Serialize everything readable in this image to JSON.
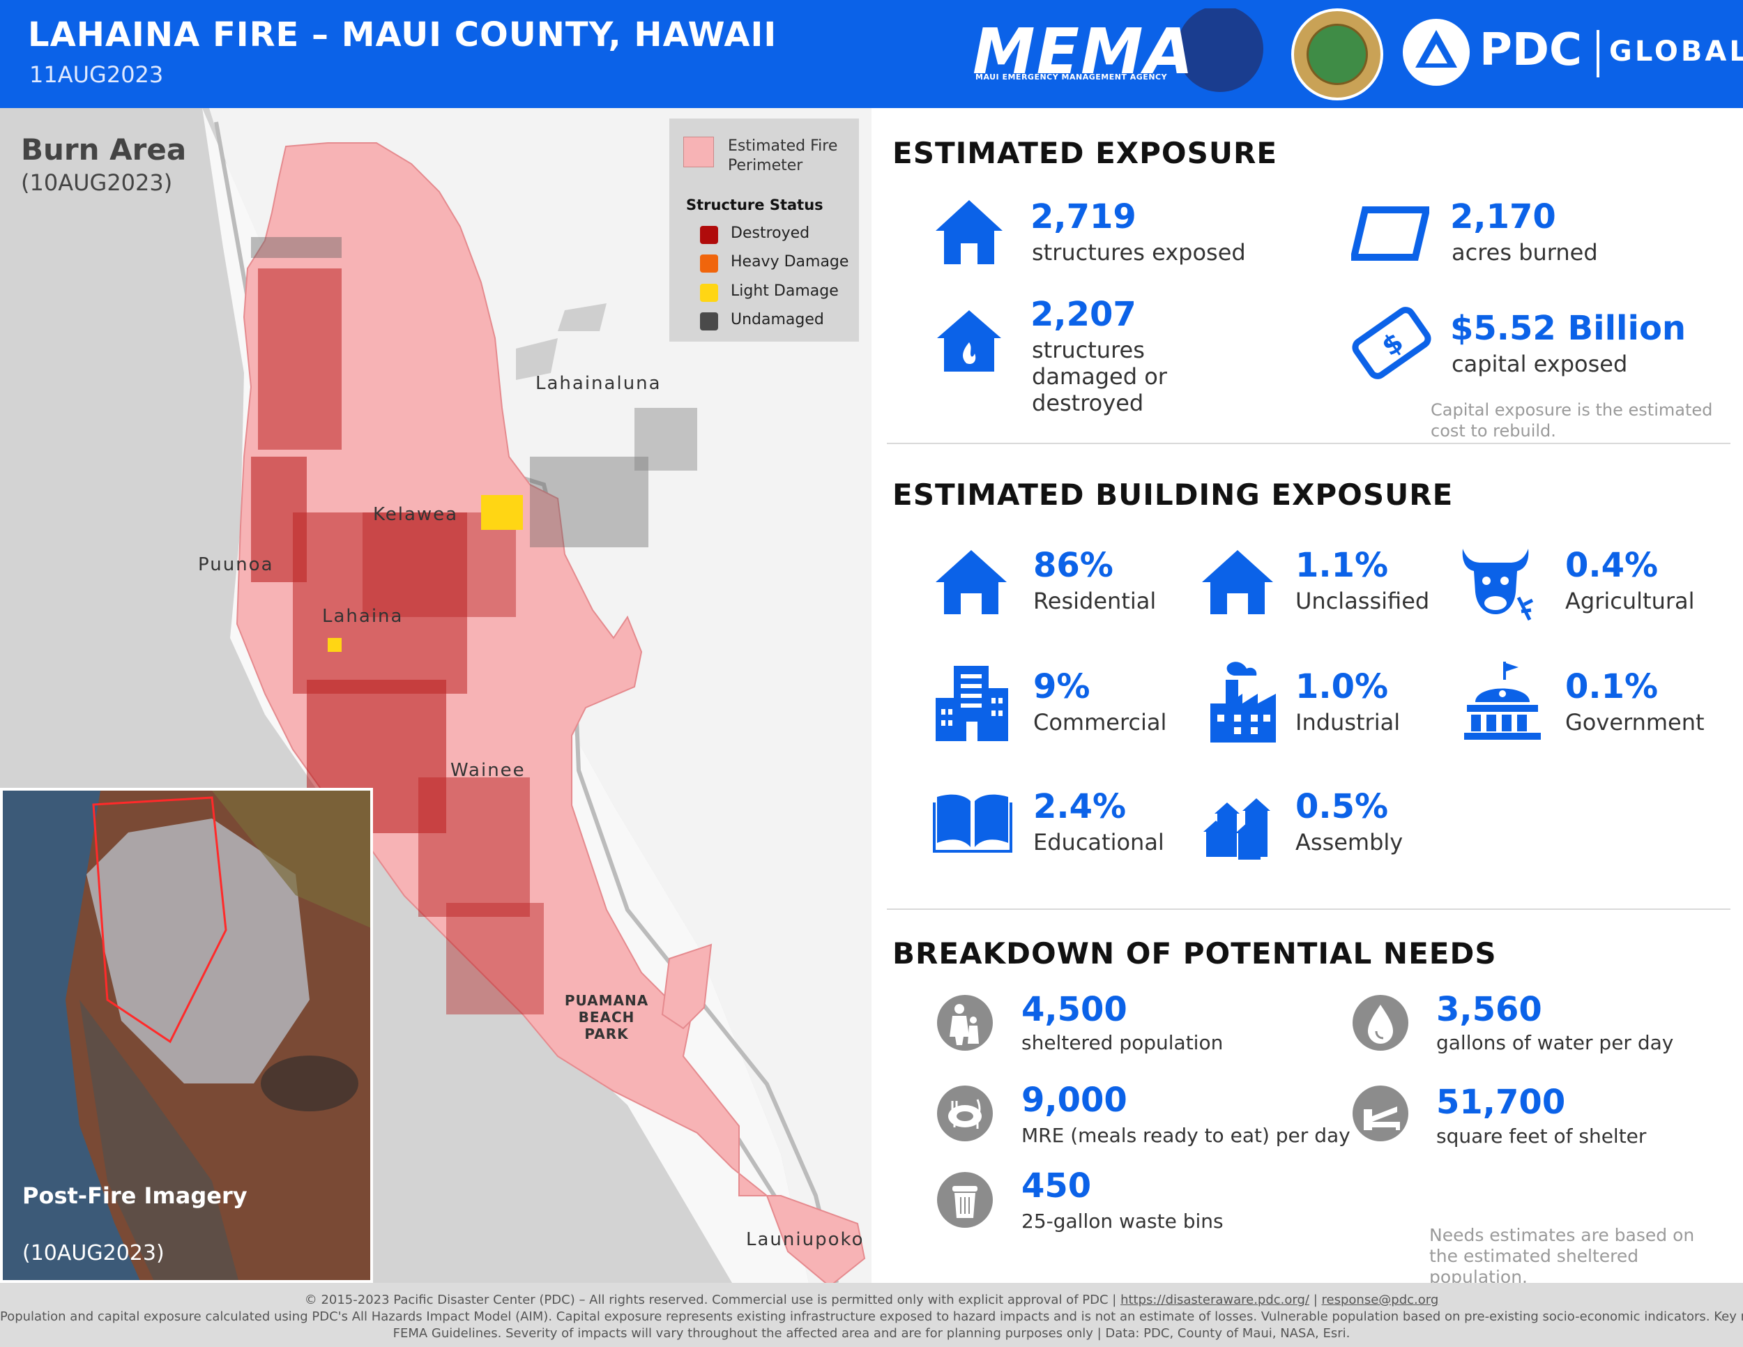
{
  "header": {
    "title": "LAHAINA FIRE – MAUI COUNTY, HAWAII",
    "date": "11AUG2023",
    "mema_logo_text": "MEMA",
    "mema_subtext": "MAUI EMERGENCY MANAGEMENT AGENCY",
    "pdc_logo_text": "PDC",
    "pdc_global_text": "GLOBAL",
    "colors": {
      "banner": "#0b62e8",
      "accent": "#0b62e8"
    }
  },
  "map": {
    "title": "Burn Area",
    "title_date": "(10AUG2023)",
    "legend": {
      "perimeter_label": "Estimated Fire Perimeter",
      "status_title": "Structure Status",
      "items": [
        {
          "label": "Destroyed",
          "color": "#b00b0b"
        },
        {
          "label": "Heavy Damage",
          "color": "#f0650c"
        },
        {
          "label": "Light Damage",
          "color": "#ffd614"
        },
        {
          "label": "Undamaged",
          "color": "#4a4a4a"
        }
      ]
    },
    "places": {
      "lahainaluna": "Lahainaluna",
      "kelawea": "Kelawea",
      "puunoa": "Puunoa",
      "lahaina": "Lahaina",
      "wainee": "Wainee",
      "puamana": "PUAMANA BEACH PARK",
      "launiupoko": "Launiupoko"
    },
    "inset": {
      "title": "Post-Fire Imagery",
      "date": "(10AUG2023)"
    }
  },
  "exposure": {
    "title": "ESTIMATED EXPOSURE",
    "items": [
      {
        "value": "2,719",
        "label": "structures exposed",
        "icon": "house-icon"
      },
      {
        "value": "2,170",
        "label": "acres burned",
        "icon": "parcel-icon"
      },
      {
        "value": "2,207",
        "label": "structures damaged or destroyed",
        "icon": "burning-house-icon"
      },
      {
        "value": "$5.52 Billion",
        "label": "capital exposed",
        "icon": "money-icon"
      }
    ],
    "note": "Capital exposure is the estimated cost to rebuild."
  },
  "building": {
    "title": "ESTIMATED BUILDING EXPOSURE",
    "items": [
      {
        "value": "86%",
        "label": "Residential",
        "icon": "house-icon"
      },
      {
        "value": "1.1%",
        "label": "Unclassified",
        "icon": "house-icon"
      },
      {
        "value": "0.4%",
        "label": "Agricultural",
        "icon": "cow-icon"
      },
      {
        "value": "9%",
        "label": "Commercial",
        "icon": "office-building-icon"
      },
      {
        "value": "1.0%",
        "label": "Industrial",
        "icon": "factory-icon"
      },
      {
        "value": "0.1%",
        "label": "Government",
        "icon": "capitol-icon"
      },
      {
        "value": "2.4%",
        "label": "Educational",
        "icon": "book-icon"
      },
      {
        "value": "0.5%",
        "label": "Assembly",
        "icon": "houses-icon"
      }
    ]
  },
  "needs": {
    "title": "BREAKDOWN OF POTENTIAL NEEDS",
    "items": [
      {
        "value": "4,500",
        "label": "sheltered population",
        "icon": "family-icon"
      },
      {
        "value": "3,560",
        "label": "gallons of water per day",
        "icon": "water-drop-icon"
      },
      {
        "value": "9,000",
        "label": "MRE (meals ready to eat) per day",
        "icon": "meal-icon"
      },
      {
        "value": "51,700",
        "label": "square feet of shelter",
        "icon": "cot-icon"
      },
      {
        "value": "450",
        "label": "25-gallon waste bins",
        "icon": "trash-bin-icon"
      }
    ],
    "note": "Needs estimates are based on the estimated sheltered population."
  },
  "footer": {
    "line1_text": "© 2015-2023 Pacific Disaster Center (PDC) – All rights reserved. Commercial use is permitted only with explicit approval of PDC",
    "line1_link1": "https://disasteraware.pdc.org/",
    "line1_link2": "response@pdc.org",
    "line2": "Population and capital exposure calculated using PDC's All Hazards Impact Model (AIM). Capital exposure represents existing infrastructure exposed to hazard impacts and is not an estimate of losses. Vulnerable population based on pre-existing socio-economic indicators. Key needs based on",
    "line3": "FEMA Guidelines. Severity of impacts will vary throughout the affected area and are for planning purposes only | Data: PDC, County of Maui, NASA, Esri."
  }
}
